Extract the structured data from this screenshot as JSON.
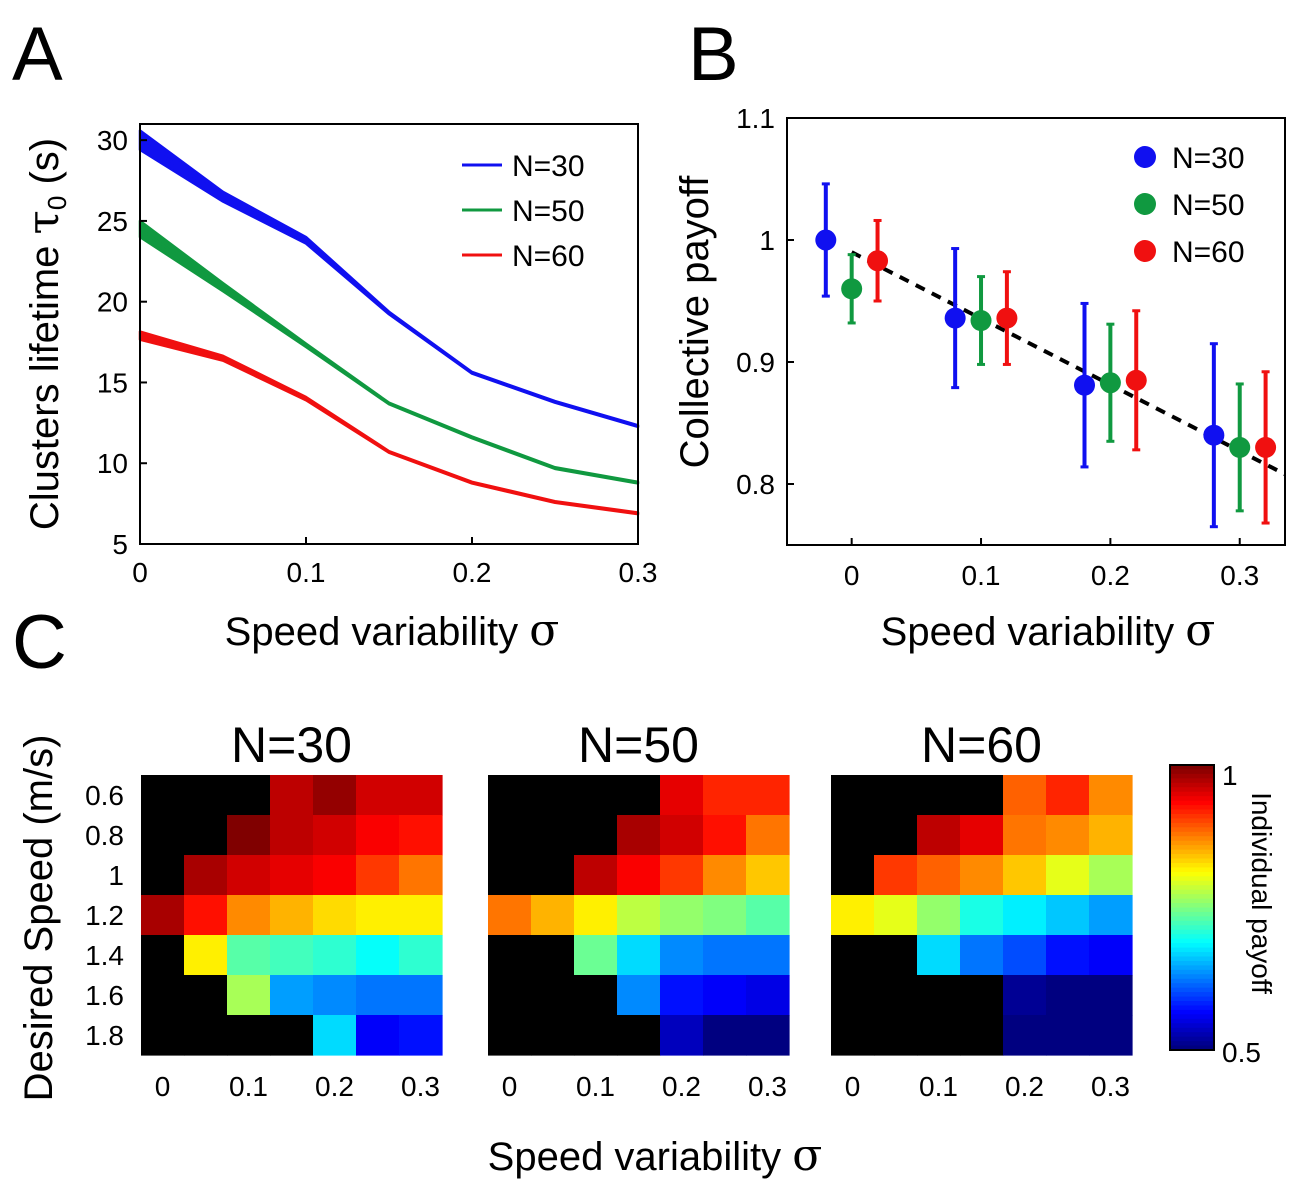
{
  "panels": {
    "a": "A",
    "b": "B",
    "c": "C"
  },
  "chart_data": [
    {
      "type": "line",
      "panel": "A",
      "xlabel": "Speed variability σ",
      "xlabel_text": "Speed variability",
      "xlabel_symbol": "σ",
      "ylabel": "Clusters lifetime τ0 (s)",
      "ylabel_text": "Clusters lifetime",
      "ylabel_symbol": "τ",
      "ylabel_sub": "0",
      "ylabel_unit": "(s)",
      "xlim": [
        0,
        0.3
      ],
      "ylim": [
        5,
        31
      ],
      "xticks": [
        "0",
        "0.1",
        "0.2",
        "0.3"
      ],
      "xtick_values": [
        0,
        0.1,
        0.2,
        0.3
      ],
      "yticks": [
        "5",
        "10",
        "15",
        "20",
        "25",
        "30"
      ],
      "ytick_values": [
        5,
        10,
        15,
        20,
        25,
        30
      ],
      "legend_position": "top-right",
      "x": [
        0,
        0.05,
        0.1,
        0.15,
        0.2,
        0.25,
        0.3
      ],
      "series": [
        {
          "name": "N=30",
          "color": "#1010f0",
          "values": [
            30.0,
            26.5,
            23.8,
            19.3,
            15.6,
            13.8,
            12.3
          ],
          "band": [
            0.6,
            0.3,
            0.2,
            0.08,
            0.05,
            0.05,
            0.05
          ]
        },
        {
          "name": "N=50",
          "color": "#109940",
          "values": [
            24.5,
            20.9,
            17.3,
            13.7,
            11.6,
            9.7,
            8.8
          ],
          "band": [
            0.5,
            0.25,
            0.1,
            0.05,
            0.05,
            0.05,
            0.05
          ]
        },
        {
          "name": "N=60",
          "color": "#f01010",
          "values": [
            17.9,
            16.5,
            14.0,
            10.7,
            8.8,
            7.6,
            6.9
          ],
          "band": [
            0.25,
            0.15,
            0.1,
            0.05,
            0.05,
            0.05,
            0.05
          ]
        }
      ]
    },
    {
      "type": "scatter",
      "panel": "B",
      "xlabel": "Speed variability σ",
      "xlabel_text": "Speed variability",
      "xlabel_symbol": "σ",
      "ylabel": "Collective payoff",
      "xlim": [
        -0.05,
        0.335
      ],
      "ylim": [
        0.75,
        1.1
      ],
      "xticks": [
        "0",
        "0.1",
        "0.2",
        "0.3"
      ],
      "xtick_values": [
        0,
        0.1,
        0.2,
        0.3
      ],
      "yticks": [
        "0.8",
        "0.9",
        "1",
        "1.1"
      ],
      "ytick_values": [
        0.8,
        0.9,
        1.0,
        1.1
      ],
      "legend_position": "top-right",
      "fit_line": {
        "style": "dashed",
        "x": [
          0,
          0.335
        ],
        "y": [
          0.99,
          0.808
        ]
      },
      "series": [
        {
          "name": "N=30",
          "color": "#1010f0",
          "x": [
            -0.02,
            0.08,
            0.18,
            0.28
          ],
          "y": [
            1.0,
            0.936,
            0.881,
            0.84
          ],
          "err": [
            0.046,
            0.057,
            0.067,
            0.075
          ]
        },
        {
          "name": "N=50",
          "color": "#109940",
          "x": [
            0,
            0.1,
            0.2,
            0.3
          ],
          "y": [
            0.96,
            0.934,
            0.883,
            0.83
          ],
          "err": [
            0.028,
            0.036,
            0.048,
            0.052
          ]
        },
        {
          "name": "N=60",
          "color": "#f01010",
          "x": [
            0.02,
            0.12,
            0.22,
            0.32
          ],
          "y": [
            0.983,
            0.936,
            0.885,
            0.83
          ],
          "err": [
            0.033,
            0.038,
            0.057,
            0.062
          ]
        }
      ]
    },
    {
      "type": "heatmap",
      "panel": "C",
      "xlabel": "Speed variability σ",
      "xlabel_text": "Speed variability",
      "xlabel_symbol": "σ",
      "ylabel": "Desired Speed (m/s)",
      "colorbar_label": "Individual payoff",
      "colorbar_range": [
        0.5,
        1
      ],
      "colorbar_ticks": [
        "0.5",
        "1"
      ],
      "colormap": "jet",
      "missing_color": "#000000",
      "x": [
        0,
        0.05,
        0.1,
        0.15,
        0.2,
        0.25,
        0.3
      ],
      "y": [
        0.6,
        0.8,
        1.0,
        1.2,
        1.4,
        1.6,
        1.8
      ],
      "xticks": [
        "0",
        "0.1",
        "0.2",
        "0.3"
      ],
      "xtick_values": [
        0,
        0.1,
        0.2,
        0.3
      ],
      "yticks": [
        "0.6",
        "0.8",
        "1",
        "1.2",
        "1.4",
        "1.6",
        "1.8"
      ],
      "maps": [
        {
          "title": "N=30",
          "values": [
            [
              null,
              null,
              null,
              0.97,
              0.99,
              0.96,
              0.96
            ],
            [
              null,
              null,
              1.0,
              0.97,
              0.96,
              0.94,
              0.93
            ],
            [
              null,
              0.98,
              0.96,
              0.95,
              0.94,
              0.91,
              0.88
            ],
            [
              0.98,
              0.93,
              0.87,
              0.85,
              0.83,
              0.82,
              0.82
            ],
            [
              null,
              0.82,
              0.73,
              0.72,
              0.71,
              0.69,
              0.71
            ],
            [
              null,
              null,
              0.77,
              0.64,
              0.63,
              0.62,
              0.62
            ],
            [
              null,
              null,
              null,
              null,
              0.67,
              0.56,
              0.57
            ]
          ]
        },
        {
          "title": "N=50",
          "values": [
            [
              null,
              null,
              null,
              null,
              0.95,
              0.92,
              0.92
            ],
            [
              null,
              null,
              null,
              0.98,
              0.96,
              0.93,
              0.88
            ],
            [
              null,
              null,
              0.97,
              0.94,
              0.91,
              0.87,
              0.84
            ],
            [
              0.88,
              0.85,
              0.82,
              0.78,
              0.76,
              0.75,
              0.73
            ],
            [
              null,
              null,
              0.74,
              0.67,
              0.63,
              0.62,
              0.62
            ],
            [
              null,
              null,
              null,
              0.63,
              0.57,
              0.56,
              0.55
            ],
            [
              null,
              null,
              null,
              null,
              0.53,
              0.5,
              0.48
            ]
          ]
        },
        {
          "title": "N=60",
          "values": [
            [
              null,
              null,
              null,
              null,
              0.89,
              0.92,
              0.87
            ],
            [
              null,
              null,
              0.97,
              0.95,
              0.88,
              0.87,
              0.85
            ],
            [
              null,
              0.91,
              0.89,
              0.87,
              0.84,
              0.8,
              0.77
            ],
            [
              0.82,
              0.8,
              0.76,
              0.7,
              0.68,
              0.66,
              0.64
            ],
            [
              null,
              null,
              0.67,
              0.62,
              0.6,
              0.57,
              0.56
            ],
            [
              null,
              null,
              null,
              null,
              0.51,
              0.49,
              0.48
            ],
            [
              null,
              null,
              null,
              null,
              0.45,
              0.43,
              0.42
            ]
          ]
        }
      ]
    }
  ]
}
